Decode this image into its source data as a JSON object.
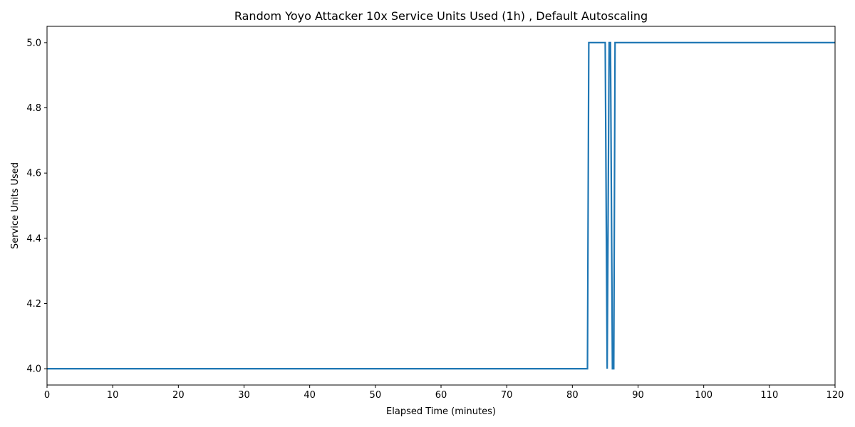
{
  "chart_data": {
    "type": "line",
    "title": "Random Yoyo Attacker 10x Service Units Used (1h) , Default Autoscaling",
    "xlabel": "Elapsed Time (minutes)",
    "ylabel": "Service Units Used",
    "xlim": [
      0,
      120
    ],
    "ylim": [
      3.95,
      5.05
    ],
    "x_ticks": [
      0,
      10,
      20,
      30,
      40,
      50,
      60,
      70,
      80,
      90,
      100,
      110,
      120
    ],
    "y_ticks": [
      4.0,
      4.2,
      4.4,
      4.6,
      4.8,
      5.0
    ],
    "x_tick_labels": [
      "0",
      "10",
      "20",
      "30",
      "40",
      "50",
      "60",
      "70",
      "80",
      "90",
      "100",
      "110",
      "120"
    ],
    "y_tick_labels": [
      "4.0",
      "4.2",
      "4.4",
      "4.6",
      "4.8",
      "5.0"
    ],
    "grid": false,
    "series": [
      {
        "color": "#1f77b4",
        "x": [
          0,
          82.3,
          82.5,
          85.0,
          85.3,
          85.6,
          85.8,
          86.1,
          86.3,
          86.5,
          120
        ],
        "y": [
          4.0,
          4.0,
          5.0,
          5.0,
          4.0,
          5.0,
          5.0,
          4.0,
          4.0,
          5.0,
          5.0
        ]
      }
    ]
  }
}
